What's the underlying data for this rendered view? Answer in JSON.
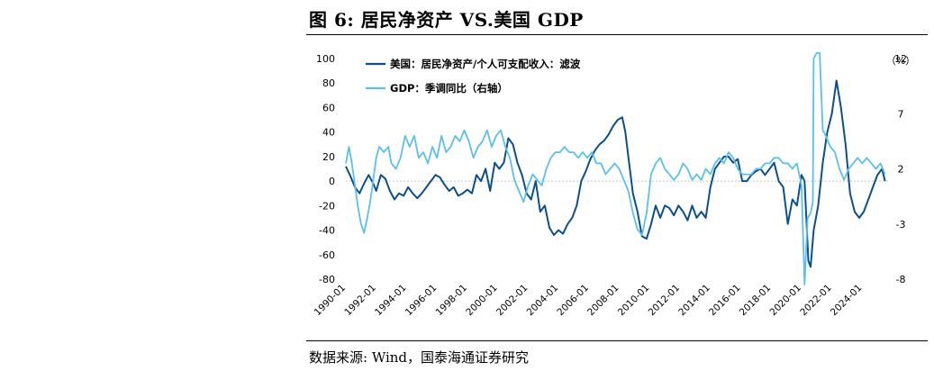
{
  "title": "图 6:  居民净资产 VS.美国 GDP",
  "source": "数据来源:  Wind，国泰海通证券研究",
  "chart_data": {
    "type": "line",
    "left_axis": {
      "ylim": [
        -80,
        100
      ],
      "ticks": [
        "100",
        "80",
        "60",
        "40",
        "20",
        "0",
        "-20",
        "-40",
        "-60",
        "-80"
      ]
    },
    "right_axis": {
      "unit": "（%）",
      "ylim": [
        -8,
        12
      ],
      "ticks": [
        "12",
        "7",
        "2",
        "-3",
        "-8"
      ]
    },
    "x_tick_labels": [
      "1990-01",
      "1992-01",
      "1994-01",
      "1996-01",
      "1998-01",
      "2000-01",
      "2002-01",
      "2004-01",
      "2006-01",
      "2008-01",
      "2010-01",
      "2012-01",
      "2014-01",
      "2016-01",
      "2018-01",
      "2020-01",
      "2022-01",
      "2024-01"
    ],
    "x_range": [
      1990.0,
      2025.7
    ],
    "legend_position": "top-left",
    "series": [
      {
        "name": "美国：居民净资产/个人可支配收入：滤波",
        "axis": "left",
        "color": "#0d4f8b",
        "points": [
          [
            1990.0,
            12
          ],
          [
            1990.3,
            4
          ],
          [
            1990.6,
            -5
          ],
          [
            1990.9,
            -10
          ],
          [
            1991.2,
            -2
          ],
          [
            1991.5,
            5
          ],
          [
            1991.8,
            -2
          ],
          [
            1992.0,
            -8
          ],
          [
            1992.3,
            5
          ],
          [
            1992.6,
            2
          ],
          [
            1992.9,
            -8
          ],
          [
            1993.2,
            -15
          ],
          [
            1993.5,
            -10
          ],
          [
            1993.8,
            -12
          ],
          [
            1994.1,
            -5
          ],
          [
            1994.4,
            -10
          ],
          [
            1994.7,
            -14
          ],
          [
            1995.0,
            -10
          ],
          [
            1995.3,
            -5
          ],
          [
            1995.6,
            0
          ],
          [
            1995.9,
            5
          ],
          [
            1996.2,
            3
          ],
          [
            1996.5,
            -3
          ],
          [
            1996.8,
            -8
          ],
          [
            1997.1,
            -5
          ],
          [
            1997.4,
            -12
          ],
          [
            1997.7,
            -10
          ],
          [
            1998.0,
            -7
          ],
          [
            1998.3,
            -10
          ],
          [
            1998.6,
            5
          ],
          [
            1998.9,
            0
          ],
          [
            1999.2,
            10
          ],
          [
            1999.5,
            -8
          ],
          [
            1999.8,
            15
          ],
          [
            2000.1,
            10
          ],
          [
            2000.4,
            15
          ],
          [
            2000.7,
            35
          ],
          [
            2001.0,
            30
          ],
          [
            2001.3,
            15
          ],
          [
            2001.6,
            5
          ],
          [
            2001.9,
            -10
          ],
          [
            2002.2,
            -15
          ],
          [
            2002.5,
            0
          ],
          [
            2002.8,
            -25
          ],
          [
            2003.1,
            -20
          ],
          [
            2003.4,
            -38
          ],
          [
            2003.7,
            -44
          ],
          [
            2004.0,
            -40
          ],
          [
            2004.3,
            -43
          ],
          [
            2004.6,
            -35
          ],
          [
            2004.9,
            -30
          ],
          [
            2005.2,
            -20
          ],
          [
            2005.5,
            0
          ],
          [
            2005.8,
            8
          ],
          [
            2006.1,
            18
          ],
          [
            2006.4,
            25
          ],
          [
            2006.7,
            30
          ],
          [
            2007.0,
            33
          ],
          [
            2007.3,
            38
          ],
          [
            2007.6,
            45
          ],
          [
            2007.9,
            50
          ],
          [
            2008.2,
            52
          ],
          [
            2008.4,
            40
          ],
          [
            2008.6,
            20
          ],
          [
            2008.9,
            -10
          ],
          [
            2009.2,
            -25
          ],
          [
            2009.5,
            -45
          ],
          [
            2009.8,
            -47
          ],
          [
            2010.1,
            -35
          ],
          [
            2010.4,
            -20
          ],
          [
            2010.7,
            -30
          ],
          [
            2011.0,
            -20
          ],
          [
            2011.3,
            -22
          ],
          [
            2011.6,
            -28
          ],
          [
            2011.9,
            -20
          ],
          [
            2012.2,
            -25
          ],
          [
            2012.5,
            -32
          ],
          [
            2012.8,
            -20
          ],
          [
            2013.1,
            -30
          ],
          [
            2013.4,
            -25
          ],
          [
            2013.7,
            -30
          ],
          [
            2014.0,
            -5
          ],
          [
            2014.3,
            10
          ],
          [
            2014.6,
            15
          ],
          [
            2014.9,
            20
          ],
          [
            2015.2,
            20
          ],
          [
            2015.5,
            15
          ],
          [
            2015.8,
            18
          ],
          [
            2016.1,
            0
          ],
          [
            2016.4,
            0
          ],
          [
            2016.7,
            5
          ],
          [
            2017.0,
            8
          ],
          [
            2017.3,
            10
          ],
          [
            2017.6,
            5
          ],
          [
            2017.9,
            10
          ],
          [
            2018.2,
            15
          ],
          [
            2018.5,
            0
          ],
          [
            2018.8,
            -5
          ],
          [
            2019.1,
            -35
          ],
          [
            2019.4,
            -15
          ],
          [
            2019.7,
            -20
          ],
          [
            2020.0,
            5
          ],
          [
            2020.2,
            0
          ],
          [
            2020.45,
            -65
          ],
          [
            2020.6,
            -70
          ],
          [
            2020.8,
            -40
          ],
          [
            2021.1,
            -20
          ],
          [
            2021.4,
            15
          ],
          [
            2021.7,
            40
          ],
          [
            2022.0,
            55
          ],
          [
            2022.3,
            82
          ],
          [
            2022.6,
            60
          ],
          [
            2022.9,
            30
          ],
          [
            2023.2,
            -10
          ],
          [
            2023.5,
            -25
          ],
          [
            2023.8,
            -30
          ],
          [
            2024.1,
            -25
          ],
          [
            2024.4,
            -15
          ],
          [
            2024.7,
            -5
          ],
          [
            2025.0,
            5
          ],
          [
            2025.3,
            10
          ],
          [
            2025.5,
            0
          ]
        ]
      },
      {
        "name": "GDP：季调同比（右轴）",
        "axis": "right",
        "color": "#5bc0eb",
        "points": [
          [
            1990.0,
            2.5
          ],
          [
            1990.2,
            4.0
          ],
          [
            1990.4,
            2.5
          ],
          [
            1990.6,
            0.5
          ],
          [
            1990.8,
            -1.5
          ],
          [
            1991.0,
            -3.0
          ],
          [
            1991.2,
            -3.8
          ],
          [
            1991.4,
            -2.5
          ],
          [
            1991.6,
            -1.0
          ],
          [
            1991.8,
            1.0
          ],
          [
            1992.0,
            3.0
          ],
          [
            1992.2,
            4.0
          ],
          [
            1992.5,
            3.5
          ],
          [
            1992.8,
            4.0
          ],
          [
            1993.0,
            2.5
          ],
          [
            1993.3,
            2.0
          ],
          [
            1993.6,
            3.0
          ],
          [
            1993.9,
            5.0
          ],
          [
            1994.2,
            4.0
          ],
          [
            1994.5,
            5.0
          ],
          [
            1994.8,
            3.0
          ],
          [
            1995.1,
            3.5
          ],
          [
            1995.4,
            2.5
          ],
          [
            1995.7,
            4.0
          ],
          [
            1996.0,
            3.0
          ],
          [
            1996.3,
            5.0
          ],
          [
            1996.6,
            3.5
          ],
          [
            1996.9,
            4.0
          ],
          [
            1997.2,
            5.0
          ],
          [
            1997.5,
            4.5
          ],
          [
            1997.8,
            5.5
          ],
          [
            1998.1,
            4.5
          ],
          [
            1998.4,
            3.0
          ],
          [
            1998.7,
            4.0
          ],
          [
            1999.0,
            4.5
          ],
          [
            1999.3,
            5.5
          ],
          [
            1999.6,
            4.0
          ],
          [
            1999.9,
            5.0
          ],
          [
            2000.2,
            5.5
          ],
          [
            2000.5,
            4.0
          ],
          [
            2000.8,
            3.0
          ],
          [
            2001.1,
            1.0
          ],
          [
            2001.4,
            0.0
          ],
          [
            2001.7,
            -1.0
          ],
          [
            2002.0,
            0.5
          ],
          [
            2002.3,
            1.5
          ],
          [
            2002.6,
            1.0
          ],
          [
            2002.9,
            0.5
          ],
          [
            2003.2,
            2.0
          ],
          [
            2003.5,
            3.0
          ],
          [
            2003.8,
            3.5
          ],
          [
            2004.1,
            3.5
          ],
          [
            2004.4,
            4.0
          ],
          [
            2004.7,
            3.5
          ],
          [
            2005.0,
            3.5
          ],
          [
            2005.3,
            3.0
          ],
          [
            2005.6,
            3.5
          ],
          [
            2005.9,
            3.0
          ],
          [
            2006.2,
            3.5
          ],
          [
            2006.5,
            2.5
          ],
          [
            2006.8,
            2.5
          ],
          [
            2007.1,
            1.5
          ],
          [
            2007.4,
            2.0
          ],
          [
            2007.7,
            2.5
          ],
          [
            2008.0,
            2.0
          ],
          [
            2008.3,
            1.0
          ],
          [
            2008.6,
            0.0
          ],
          [
            2008.9,
            -2.0
          ],
          [
            2009.2,
            -3.5
          ],
          [
            2009.5,
            -4.0
          ],
          [
            2009.8,
            -2.0
          ],
          [
            2010.1,
            1.5
          ],
          [
            2010.4,
            2.5
          ],
          [
            2010.7,
            3.0
          ],
          [
            2011.0,
            2.0
          ],
          [
            2011.3,
            1.5
          ],
          [
            2011.6,
            1.0
          ],
          [
            2011.9,
            1.5
          ],
          [
            2012.2,
            2.5
          ],
          [
            2012.5,
            2.0
          ],
          [
            2012.8,
            1.0
          ],
          [
            2013.1,
            1.5
          ],
          [
            2013.4,
            1.0
          ],
          [
            2013.7,
            2.0
          ],
          [
            2014.0,
            1.5
          ],
          [
            2014.3,
            2.5
          ],
          [
            2014.6,
            3.0
          ],
          [
            2014.9,
            2.5
          ],
          [
            2015.2,
            3.5
          ],
          [
            2015.5,
            3.0
          ],
          [
            2015.8,
            2.0
          ],
          [
            2016.1,
            1.5
          ],
          [
            2016.4,
            1.5
          ],
          [
            2016.7,
            1.5
          ],
          [
            2017.0,
            2.0
          ],
          [
            2017.3,
            2.0
          ],
          [
            2017.6,
            2.5
          ],
          [
            2017.9,
            2.5
          ],
          [
            2018.2,
            3.0
          ],
          [
            2018.5,
            3.0
          ],
          [
            2018.8,
            2.5
          ],
          [
            2019.1,
            2.5
          ],
          [
            2019.4,
            2.0
          ],
          [
            2019.7,
            2.5
          ],
          [
            2020.0,
            0.5
          ],
          [
            2020.2,
            -8.5
          ],
          [
            2020.4,
            -2.5
          ],
          [
            2020.6,
            -2.0
          ],
          [
            2020.75,
            -1.0
          ],
          [
            2020.8,
            12.0
          ],
          [
            2021.0,
            12.5
          ],
          [
            2021.2,
            12.5
          ],
          [
            2021.4,
            5.5
          ],
          [
            2021.6,
            5.0
          ],
          [
            2021.9,
            4.0
          ],
          [
            2022.2,
            3.5
          ],
          [
            2022.5,
            2.0
          ],
          [
            2022.8,
            1.0
          ],
          [
            2023.1,
            2.0
          ],
          [
            2023.4,
            2.5
          ],
          [
            2023.7,
            3.0
          ],
          [
            2024.0,
            2.5
          ],
          [
            2024.3,
            3.0
          ],
          [
            2024.6,
            2.5
          ],
          [
            2024.9,
            2.0
          ],
          [
            2025.2,
            2.5
          ],
          [
            2025.5,
            1.5
          ]
        ]
      }
    ]
  }
}
